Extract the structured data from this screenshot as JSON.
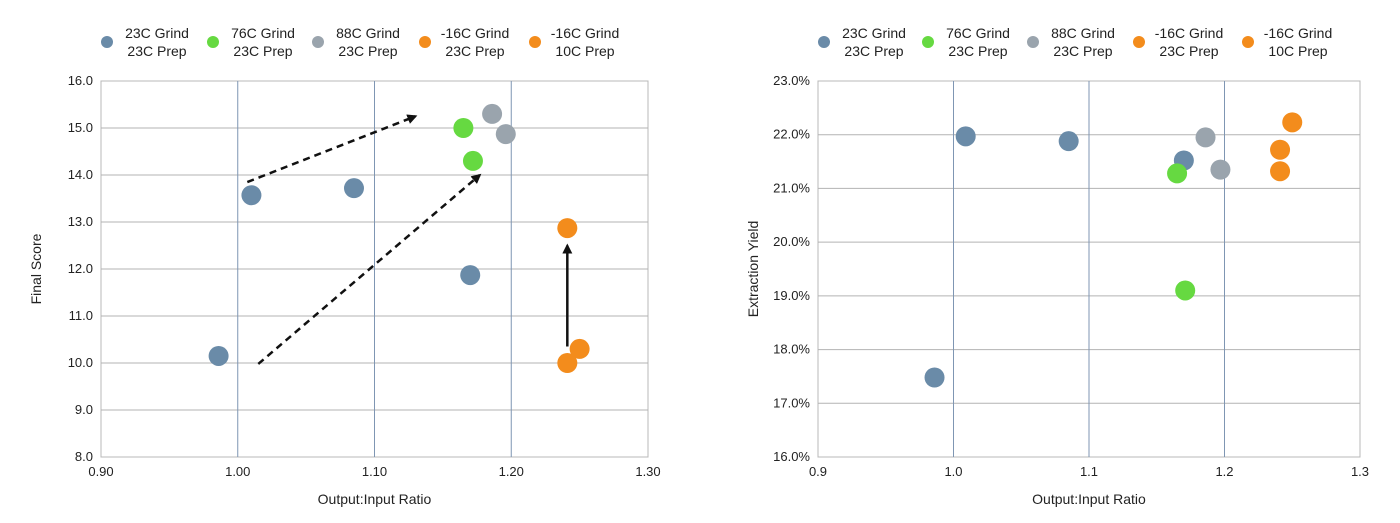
{
  "chart_data": [
    {
      "type": "scatter",
      "xlabel": "Output:Input Ratio",
      "ylabel": "Final Score",
      "xlim": [
        0.9,
        1.3
      ],
      "ylim": [
        8.0,
        16.0
      ],
      "x_ticks": [
        "0.90",
        "1.00",
        "1.10",
        "1.20",
        "1.30"
      ],
      "y_ticks": [
        "8.0",
        "9.0",
        "10.0",
        "11.0",
        "12.0",
        "13.0",
        "14.0",
        "15.0",
        "16.0"
      ],
      "legend_position": "top",
      "grid": true,
      "series": [
        {
          "name": [
            "23C Grind",
            "23C Prep"
          ],
          "color": "#6a8ba8",
          "points": [
            [
              0.986,
              10.15
            ],
            [
              1.01,
              13.57
            ],
            [
              1.085,
              13.72
            ],
            [
              1.17,
              11.87
            ]
          ]
        },
        {
          "name": [
            "76C Grind",
            "23C Prep"
          ],
          "color": "#66d941",
          "points": [
            [
              1.165,
              15.0
            ],
            [
              1.172,
              14.3
            ]
          ]
        },
        {
          "name": [
            "88C Grind",
            "23C Prep"
          ],
          "color": "#9aa4ad",
          "points": [
            [
              1.186,
              15.3
            ],
            [
              1.196,
              14.87
            ]
          ]
        },
        {
          "name": [
            "-16C Grind",
            "23C Prep"
          ],
          "color": "#f38c1c",
          "points": [
            [
              1.241,
              10.0
            ]
          ]
        },
        {
          "name": [
            "-16C Grind",
            "10C Prep"
          ],
          "color": "#f38c1c",
          "points": [
            [
              1.241,
              12.87
            ],
            [
              1.25,
              10.3
            ]
          ]
        }
      ],
      "annotations": [
        {
          "type": "dashed-arrow",
          "from": [
            1.007,
            13.85
          ],
          "to": [
            1.13,
            15.25
          ]
        },
        {
          "type": "dashed-arrow",
          "from": [
            1.015,
            9.98
          ],
          "to": [
            1.177,
            14.0
          ]
        },
        {
          "type": "arrow",
          "from": [
            1.241,
            10.35
          ],
          "to": [
            1.241,
            12.5
          ]
        }
      ]
    },
    {
      "type": "scatter",
      "xlabel": "Output:Input Ratio",
      "ylabel": "Extraction Yield",
      "xlim": [
        0.9,
        1.3
      ],
      "ylim": [
        16.0,
        23.0
      ],
      "x_ticks": [
        "0.9",
        "1.0",
        "1.1",
        "1.2",
        "1.3"
      ],
      "y_ticks": [
        "16.0%",
        "17.0%",
        "18.0%",
        "19.0%",
        "20.0%",
        "21.0%",
        "22.0%",
        "23.0%"
      ],
      "legend_position": "top",
      "grid": true,
      "series": [
        {
          "name": [
            "23C Grind",
            "23C Prep"
          ],
          "color": "#6a8ba8",
          "points": [
            [
              0.986,
              17.48
            ],
            [
              1.009,
              21.97
            ],
            [
              1.085,
              21.88
            ],
            [
              1.17,
              21.52
            ]
          ]
        },
        {
          "name": [
            "76C Grind",
            "23C Prep"
          ],
          "color": "#66d941",
          "points": [
            [
              1.165,
              21.28
            ],
            [
              1.171,
              19.1
            ]
          ]
        },
        {
          "name": [
            "88C Grind",
            "23C Prep"
          ],
          "color": "#9aa4ad",
          "points": [
            [
              1.186,
              21.95
            ],
            [
              1.197,
              21.35
            ]
          ]
        },
        {
          "name": [
            "-16C Grind",
            "23C Prep"
          ],
          "color": "#f38c1c",
          "points": [
            [
              1.241,
              21.72
            ]
          ]
        },
        {
          "name": [
            "-16C Grind",
            "10C Prep"
          ],
          "color": "#f38c1c",
          "points": [
            [
              1.25,
              22.23
            ],
            [
              1.241,
              21.32
            ]
          ]
        }
      ]
    }
  ]
}
